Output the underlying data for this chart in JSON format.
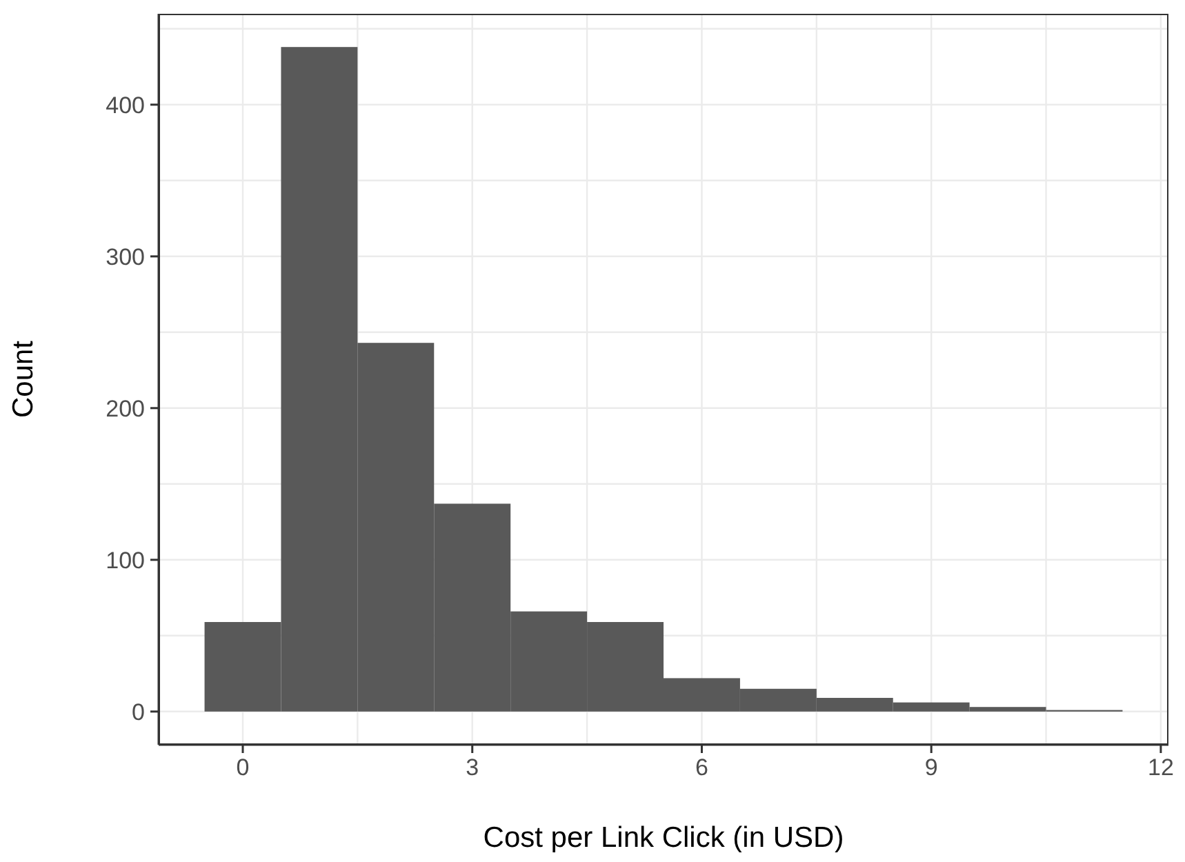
{
  "chart_data": {
    "type": "histogram",
    "xlabel": "Cost per Link Click (in USD)",
    "ylabel": "Count",
    "color": "#595959",
    "bins": [
      -0.5,
      0.5,
      1.5,
      2.5,
      3.5,
      4.5,
      5.5,
      6.5,
      7.5,
      8.5,
      9.5,
      10.5,
      11.5
    ],
    "values": [
      59,
      438,
      243,
      137,
      66,
      59,
      22,
      15,
      9,
      6,
      3,
      1
    ],
    "xlim": [
      -1.1,
      12.1
    ],
    "xticks": [
      0,
      {
        "value": 1.5,
        "label": null
      },
      3,
      {
        "value": 4.5,
        "label": null
      },
      6,
      {
        "value": 7.5,
        "label": null
      },
      9,
      {
        "value": 10.5,
        "label": null
      },
      12
    ],
    "ylim": [
      -21.9,
      459.9
    ],
    "yticks": [
      0,
      {
        "value": 50,
        "label": null
      },
      100,
      {
        "value": 150,
        "label": null
      },
      200,
      {
        "value": 250,
        "label": null
      },
      300,
      {
        "value": 350,
        "label": null
      },
      400,
      {
        "value": 450,
        "label": null
      }
    ],
    "grid": true
  }
}
